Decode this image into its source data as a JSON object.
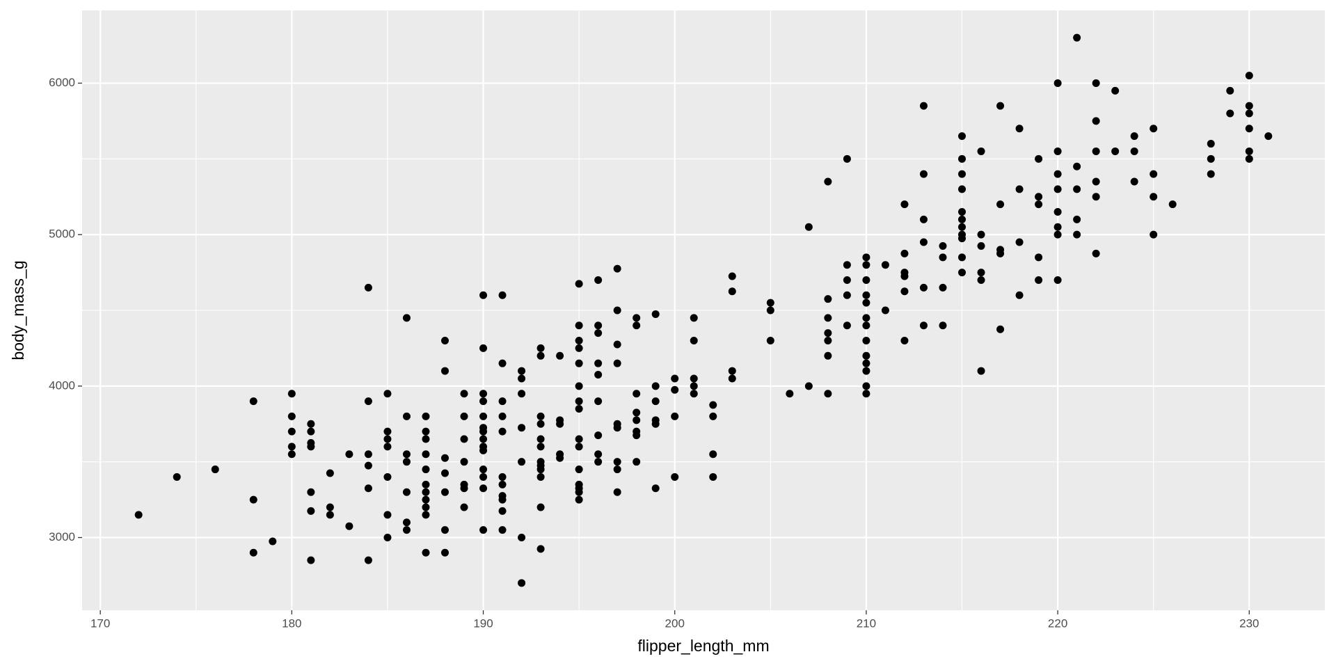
{
  "chart_data": {
    "type": "scatter",
    "x_label": "flipper_length_mm",
    "y_label": "body_mass_g",
    "color": "#000000",
    "panel_color": "#ebebeb",
    "grid": true,
    "xlim": [
      169.05,
      233.95
    ],
    "ylim": [
      2520,
      6480
    ],
    "xticks": [
      170,
      180,
      190,
      200,
      210,
      220,
      230
    ],
    "yticks": [
      3000,
      4000,
      5000,
      6000
    ],
    "xticks_minor": [
      175,
      185,
      195,
      205,
      215,
      225
    ],
    "yticks_minor": [
      3500,
      4500,
      5500
    ],
    "x": [
      172,
      174,
      176,
      178,
      178,
      178,
      179,
      180,
      180,
      180,
      180,
      180,
      181,
      181,
      181,
      181,
      181,
      181,
      181,
      182,
      182,
      182,
      183,
      183,
      184,
      184,
      184,
      184,
      184,
      184,
      185,
      185,
      185,
      185,
      185,
      185,
      185,
      186,
      186,
      186,
      186,
      186,
      186,
      186,
      187,
      187,
      187,
      187,
      187,
      187,
      187,
      187,
      187,
      187,
      187,
      188,
      188,
      188,
      188,
      188,
      188,
      188,
      189,
      189,
      189,
      189,
      189,
      189,
      189,
      190,
      190,
      190,
      190,
      190,
      190,
      190,
      190,
      190,
      190,
      190,
      190,
      190,
      190,
      191,
      191,
      191,
      191,
      191,
      191,
      191,
      191,
      191,
      191,
      191,
      192,
      192,
      192,
      192,
      192,
      192,
      192,
      193,
      193,
      193,
      193,
      193,
      193,
      193,
      193,
      193,
      193,
      193,
      193,
      194,
      194,
      194,
      194,
      194,
      195,
      195,
      195,
      195,
      195,
      195,
      195,
      195,
      195,
      195,
      195,
      195,
      195,
      195,
      195,
      196,
      196,
      196,
      196,
      196,
      196,
      196,
      196,
      196,
      197,
      197,
      197,
      197,
      197,
      197,
      197,
      197,
      197,
      198,
      198,
      198,
      198,
      198,
      198,
      198,
      198,
      199,
      199,
      199,
      199,
      199,
      199,
      200,
      200,
      200,
      200,
      201,
      201,
      201,
      201,
      201,
      202,
      202,
      202,
      202,
      203,
      203,
      203,
      203,
      205,
      205,
      205,
      206,
      207,
      207,
      208,
      208,
      208,
      208,
      208,
      208,
      208,
      209,
      209,
      209,
      209,
      209,
      210,
      210,
      210,
      210,
      210,
      210,
      210,
      210,
      210,
      210,
      210,
      210,
      210,
      211,
      211,
      212,
      212,
      212,
      212,
      212,
      212,
      213,
      213,
      213,
      213,
      213,
      213,
      214,
      214,
      214,
      214,
      215,
      215,
      215,
      215,
      215,
      215,
      215,
      215,
      215,
      215,
      215,
      216,
      216,
      216,
      216,
      216,
      216,
      217,
      217,
      217,
      217,
      217,
      218,
      218,
      218,
      218,
      219,
      219,
      219,
      219,
      219,
      220,
      220,
      220,
      220,
      220,
      220,
      220,
      220,
      221,
      221,
      221,
      221,
      221,
      222,
      222,
      222,
      222,
      222,
      222,
      223,
      223,
      224,
      224,
      224,
      225,
      225,
      225,
      225,
      226,
      228,
      228,
      228,
      229,
      229,
      230,
      230,
      230,
      230,
      230,
      230,
      231
    ],
    "y": [
      3150,
      3400,
      3450,
      3900,
      3250,
      2900,
      2975,
      3950,
      3800,
      3700,
      3600,
      3550,
      3750,
      3700,
      3625,
      3600,
      3300,
      3175,
      2850,
      3425,
      3200,
      3150,
      3550,
      3075,
      4650,
      3900,
      3550,
      3475,
      3325,
      2850,
      3950,
      3700,
      3650,
      3600,
      3400,
      3150,
      3000,
      4450,
      3800,
      3550,
      3500,
      3300,
      3100,
      3050,
      3800,
      3700,
      3650,
      3550,
      3450,
      3350,
      3300,
      3250,
      3200,
      3150,
      2900,
      4300,
      4100,
      3525,
      3425,
      3300,
      3050,
      2900,
      3950,
      3800,
      3650,
      3500,
      3350,
      3325,
      3200,
      4600,
      4250,
      3950,
      3900,
      3800,
      3725,
      3700,
      3650,
      3600,
      3575,
      3450,
      3400,
      3325,
      3050,
      4600,
      4150,
      3900,
      3800,
      3700,
      3400,
      3350,
      3275,
      3250,
      3175,
      3050,
      4100,
      4050,
      3950,
      3725,
      3500,
      3000,
      2700,
      4250,
      4200,
      3800,
      3750,
      3650,
      3600,
      3500,
      3475,
      3450,
      3400,
      3200,
      2925,
      4200,
      3775,
      3750,
      3550,
      3525,
      4675,
      4400,
      4300,
      4250,
      4150,
      4000,
      3900,
      3850,
      3650,
      3600,
      3450,
      3350,
      3325,
      3300,
      3250,
      4700,
      4400,
      4350,
      4150,
      4075,
      3900,
      3675,
      3550,
      3500,
      4775,
      4500,
      4275,
      4150,
      3750,
      3725,
      3500,
      3450,
      3300,
      4450,
      4400,
      3950,
      3825,
      3775,
      3700,
      3675,
      3500,
      4475,
      4000,
      3900,
      3775,
      3750,
      3325,
      4050,
      3975,
      3800,
      3400,
      4450,
      4300,
      4050,
      4000,
      3950,
      3875,
      3800,
      3550,
      3400,
      4725,
      4625,
      4100,
      4050,
      4550,
      4500,
      4300,
      3950,
      5050,
      4000,
      5350,
      4575,
      4450,
      4350,
      4300,
      4200,
      3950,
      5500,
      4800,
      4700,
      4600,
      4400,
      4850,
      4800,
      4700,
      4600,
      4550,
      4450,
      4400,
      4300,
      4200,
      4150,
      4100,
      4000,
      3950,
      4800,
      4500,
      5200,
      4875,
      4750,
      4725,
      4625,
      4300,
      5850,
      5400,
      5100,
      4950,
      4650,
      4400,
      4925,
      4850,
      4650,
      4400,
      5650,
      5500,
      5400,
      5300,
      5150,
      5100,
      5050,
      5000,
      4975,
      4850,
      4750,
      5550,
      5000,
      4925,
      4750,
      4700,
      4100,
      5850,
      5200,
      4900,
      4875,
      4375,
      5700,
      5300,
      4950,
      4600,
      5500,
      5250,
      5200,
      4850,
      4700,
      6000,
      5550,
      5400,
      5300,
      5150,
      5050,
      5000,
      4700,
      6300,
      5450,
      5300,
      5100,
      5000,
      6000,
      5750,
      5550,
      5350,
      5250,
      4875,
      5950,
      5550,
      5650,
      5550,
      5350,
      5700,
      5400,
      5250,
      5000,
      5200,
      5600,
      5500,
      5400,
      5950,
      5800,
      6050,
      5850,
      5800,
      5700,
      5550,
      5500,
      5650
    ]
  }
}
